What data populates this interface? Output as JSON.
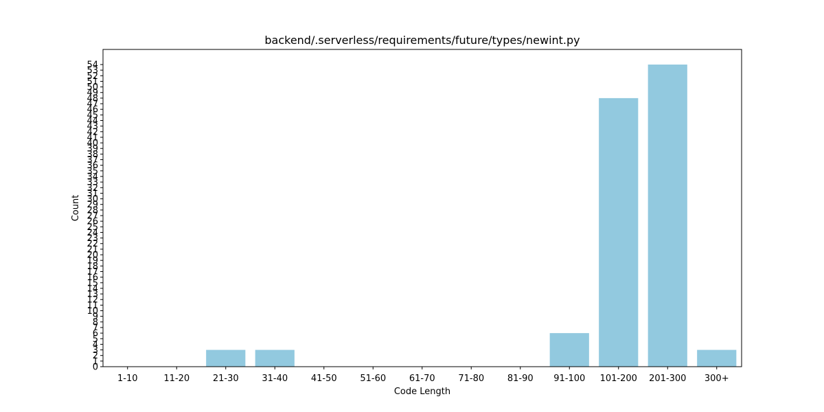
{
  "chart_data": {
    "type": "bar",
    "title": "backend/.serverless/requirements/future/types/newint.py",
    "xlabel": "Code Length",
    "ylabel": "Count",
    "categories": [
      "1-10",
      "11-20",
      "21-30",
      "31-40",
      "41-50",
      "51-60",
      "61-70",
      "71-80",
      "81-90",
      "91-100",
      "101-200",
      "201-300",
      "300+"
    ],
    "values": [
      0,
      0,
      3,
      3,
      0,
      0,
      0,
      0,
      0,
      6,
      48,
      54,
      3
    ],
    "ylim": [
      0,
      56.7
    ],
    "yticks": [
      0,
      1,
      2,
      3,
      4,
      5,
      6,
      7,
      8,
      9,
      10,
      11,
      12,
      13,
      14,
      15,
      16,
      17,
      18,
      19,
      20,
      21,
      22,
      23,
      24,
      25,
      26,
      27,
      28,
      29,
      30,
      31,
      32,
      33,
      34,
      35,
      36,
      37,
      38,
      39,
      40,
      41,
      42,
      43,
      44,
      45,
      46,
      47,
      48,
      49,
      50,
      51,
      52,
      53,
      54
    ],
    "bar_color": "#92c9df",
    "grid": false
  }
}
